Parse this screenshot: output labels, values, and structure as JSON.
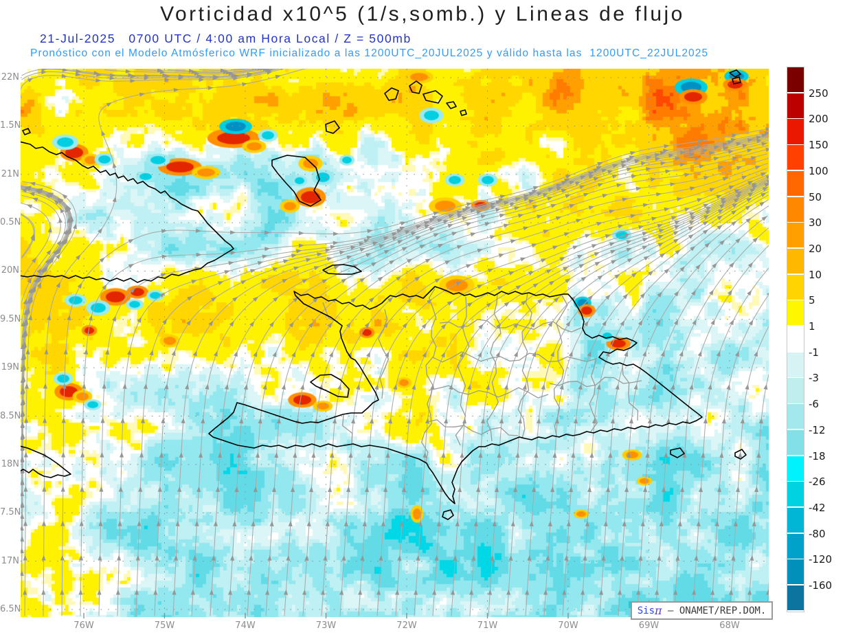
{
  "header": {
    "title": "Vorticidad x10^5 (1/s,somb.) y Lineas de flujo",
    "valid_line": "21-Jul-2025   0700 UTC / 4:00 am Hora Local / Z = 500mb",
    "forecast_line": "Pronóstico con el Modelo Atmósferico WRF inicializado a las 1200UTC_20JUL2025 y válido hasta las  1200UTC_22JUL2025",
    "title_color": "#1f1f1f",
    "valid_color": "#2233cc",
    "forecast_color": "#2f9bfc"
  },
  "map": {
    "lat_labels": [
      "22N",
      "1.5N",
      "21N",
      "0.5N",
      "20N",
      "9.5N",
      "19N",
      "8.5N",
      "18N",
      "7.5N",
      "17N",
      "6.5N"
    ],
    "lon_labels": [
      "76W",
      "75W",
      "74W",
      "73W",
      "72W",
      "71W",
      "70W",
      "69W",
      "68W"
    ],
    "axis_label_color": "#8c8c8c",
    "streamline_color": "#a9a9a9",
    "arrow_color": "#969696",
    "coastline_color": "#000000",
    "border_color": "#9a9a9a",
    "gridline_color": "#8f8f8f"
  },
  "colorbar": {
    "tick_labels": [
      "250",
      "200",
      "150",
      "100",
      "50",
      "30",
      "20",
      "10",
      "5",
      "1",
      "-1",
      "-3",
      "-6",
      "-12",
      "-18",
      "-26",
      "-42",
      "-80",
      "-120",
      "-160"
    ],
    "segment_colors": [
      "#7a0000",
      "#bc0000",
      "#ea1800",
      "#ff4000",
      "#ff6800",
      "#ff8800",
      "#ffa000",
      "#ffb800",
      "#ffd400",
      "#fff600",
      "#ffffff",
      "#d8f3f4",
      "#c0eeef",
      "#a2e8ec",
      "#83e0e8",
      "#00f2fc",
      "#00d2e2",
      "#00b6d4",
      "#00a2ca",
      "#0090ba",
      "#0d74a0"
    ],
    "label_color": "#1a1a1a"
  },
  "credit": {
    "sis": "Sis",
    "pi": "π",
    "rest": " – ONAMET/REP.DOM."
  }
}
